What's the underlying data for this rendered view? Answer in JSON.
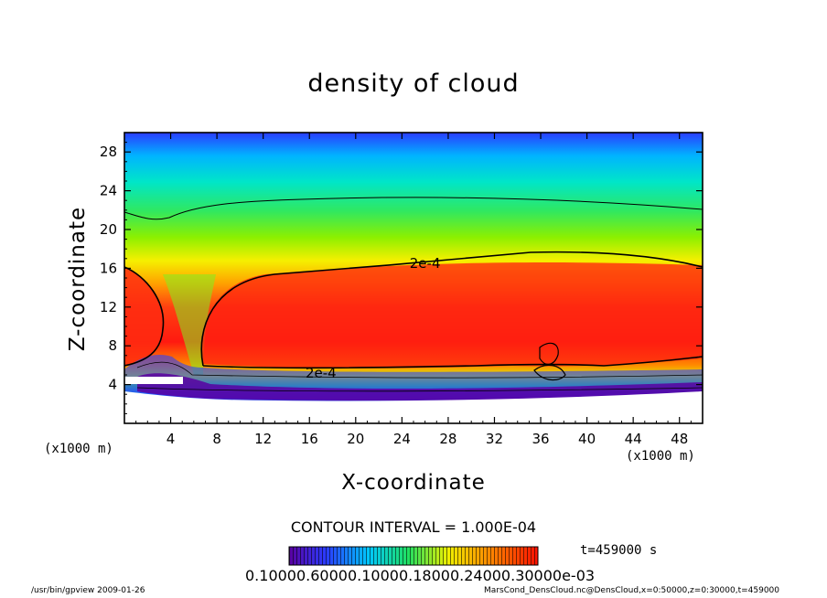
{
  "chart_data": {
    "type": "heatmap",
    "title": "density of cloud",
    "xlabel": "X-coordinate",
    "ylabel": "Z-coordinate",
    "x_unit": "(x1000 m)",
    "y_unit": "(x1000 m)",
    "xlim": [
      0,
      50
    ],
    "ylim": [
      0,
      30
    ],
    "x_ticks": [
      "4",
      "8",
      "12",
      "16",
      "20",
      "24",
      "28",
      "32",
      "36",
      "40",
      "44",
      "48"
    ],
    "y_ticks": [
      "4",
      "8",
      "12",
      "16",
      "20",
      "24",
      "28"
    ],
    "contour_labels": [
      {
        "text": "2e-4",
        "x": 26,
        "y": 16.5
      },
      {
        "text": "2e-4",
        "x": 17,
        "y": 5.2
      }
    ],
    "contour_interval": "CONTOUR INTERVAL = 1.000E-04",
    "time": "t=459000 s",
    "colorbar_labels": "0.10000.60000.10000.18000.24000.30000e-03",
    "colorscale": [
      "#5a00a0",
      "#2a3cff",
      "#00c8ff",
      "#20e060",
      "#f0f000",
      "#ff8000",
      "#ff1000"
    ]
  },
  "footer": {
    "left": "/usr/bin/gpview   2009-01-26",
    "right": "MarsCond_DensCloud.nc@DensCloud,x=0:50000,z=0:30000,t=459000"
  }
}
